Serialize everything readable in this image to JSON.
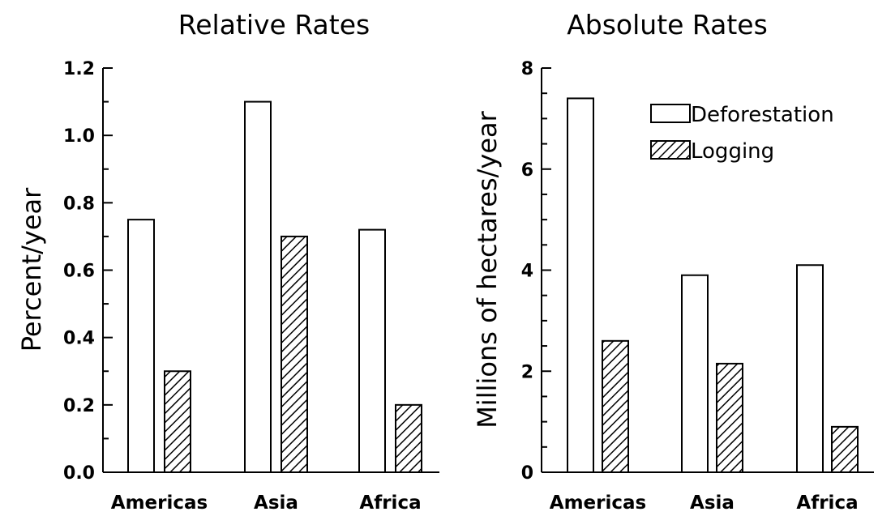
{
  "legend": {
    "entries": [
      {
        "label": "Deforestation",
        "pattern": "open"
      },
      {
        "label": "Logging",
        "pattern": "hatched"
      }
    ],
    "placement": "top-right of right chart"
  },
  "chart_data": [
    {
      "type": "bar",
      "title": "Relative Rates",
      "xlabel": "",
      "ylabel": "Percent/year",
      "categories": [
        "Americas",
        "Asia",
        "Africa"
      ],
      "series": [
        {
          "name": "Deforestation",
          "values": [
            0.75,
            1.1,
            0.72
          ]
        },
        {
          "name": "Logging",
          "values": [
            0.3,
            0.7,
            0.2
          ]
        }
      ],
      "ylim": [
        0,
        1.2
      ],
      "yticks": [
        "0.0",
        "0.2",
        "0.4",
        "0.6",
        "0.8",
        "1.0",
        "1.2"
      ],
      "grid": false
    },
    {
      "type": "bar",
      "title": "Absolute Rates",
      "xlabel": "",
      "ylabel": "Millions of hectares/year",
      "categories": [
        "Americas",
        "Asia",
        "Africa"
      ],
      "series": [
        {
          "name": "Deforestation",
          "values": [
            7.4,
            3.9,
            4.1
          ]
        },
        {
          "name": "Logging",
          "values": [
            2.6,
            2.15,
            0.9
          ]
        }
      ],
      "ylim": [
        0,
        8
      ],
      "yticks": [
        "0",
        "2",
        "4",
        "6",
        "8"
      ],
      "grid": false
    }
  ],
  "colors": {
    "ink": "#000000",
    "background": "#ffffff"
  }
}
